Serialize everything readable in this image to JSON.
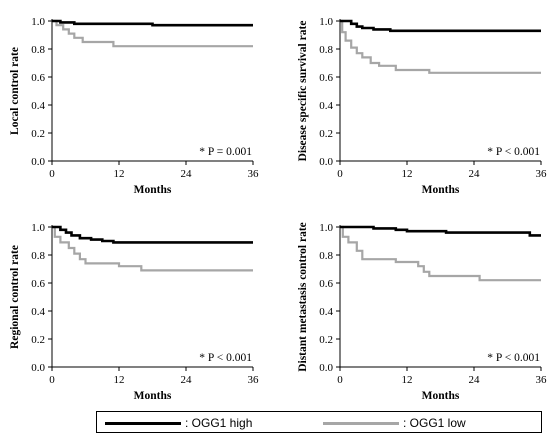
{
  "colors": {
    "high": "#000000",
    "low": "#a6a6a6",
    "axis": "#000000"
  },
  "legend": {
    "high_label": ": OGG1 high",
    "low_label": ": OGG1 low"
  },
  "chart_data": [
    {
      "type": "line",
      "ylabel": "Local control rate",
      "xlabel": "Months",
      "pvalue": "* P = 0.001",
      "xlim": [
        0,
        36
      ],
      "ylim": [
        0,
        1.0
      ],
      "xticks": [
        0,
        12,
        24,
        36
      ],
      "yticks": [
        0.0,
        0.2,
        0.4,
        0.6,
        0.8,
        1.0
      ],
      "series": [
        {
          "name": "OGG1 high",
          "color": "#000000",
          "points": [
            [
              0,
              1.0
            ],
            [
              1.5,
              1.0
            ],
            [
              1.5,
              0.99
            ],
            [
              4,
              0.99
            ],
            [
              4,
              0.98
            ],
            [
              18,
              0.98
            ],
            [
              18,
              0.97
            ],
            [
              36,
              0.97
            ]
          ]
        },
        {
          "name": "OGG1 low",
          "color": "#a6a6a6",
          "points": [
            [
              0,
              1.0
            ],
            [
              0.8,
              1.0
            ],
            [
              0.8,
              0.97
            ],
            [
              2,
              0.97
            ],
            [
              2,
              0.94
            ],
            [
              3,
              0.94
            ],
            [
              3,
              0.91
            ],
            [
              4,
              0.91
            ],
            [
              4,
              0.88
            ],
            [
              5.5,
              0.88
            ],
            [
              5.5,
              0.85
            ],
            [
              11,
              0.85
            ],
            [
              11,
              0.82
            ],
            [
              36,
              0.82
            ]
          ]
        }
      ]
    },
    {
      "type": "line",
      "ylabel": "Disease specific survival rate",
      "xlabel": "Months",
      "pvalue": "* P < 0.001",
      "xlim": [
        0,
        36
      ],
      "ylim": [
        0,
        1.0
      ],
      "xticks": [
        0,
        12,
        24,
        36
      ],
      "yticks": [
        0.0,
        0.2,
        0.4,
        0.6,
        0.8,
        1.0
      ],
      "series": [
        {
          "name": "OGG1 high",
          "color": "#000000",
          "points": [
            [
              0,
              1.0
            ],
            [
              2,
              1.0
            ],
            [
              2,
              0.98
            ],
            [
              3,
              0.98
            ],
            [
              3,
              0.96
            ],
            [
              4,
              0.96
            ],
            [
              4,
              0.95
            ],
            [
              6,
              0.95
            ],
            [
              6,
              0.94
            ],
            [
              9,
              0.94
            ],
            [
              9,
              0.93
            ],
            [
              36,
              0.93
            ]
          ]
        },
        {
          "name": "OGG1 low",
          "color": "#a6a6a6",
          "points": [
            [
              0,
              1.0
            ],
            [
              0.4,
              1.0
            ],
            [
              0.4,
              0.92
            ],
            [
              1,
              0.92
            ],
            [
              1,
              0.86
            ],
            [
              2,
              0.86
            ],
            [
              2,
              0.81
            ],
            [
              3,
              0.81
            ],
            [
              3,
              0.77
            ],
            [
              4,
              0.77
            ],
            [
              4,
              0.74
            ],
            [
              5.5,
              0.74
            ],
            [
              5.5,
              0.7
            ],
            [
              7,
              0.7
            ],
            [
              7,
              0.68
            ],
            [
              10,
              0.68
            ],
            [
              10,
              0.65
            ],
            [
              16,
              0.65
            ],
            [
              16,
              0.63
            ],
            [
              36,
              0.63
            ]
          ]
        }
      ]
    },
    {
      "type": "line",
      "ylabel": "Regional control rate",
      "xlabel": "Months",
      "pvalue": "* P < 0.001",
      "xlim": [
        0,
        36
      ],
      "ylim": [
        0,
        1.0
      ],
      "xticks": [
        0,
        12,
        24,
        36
      ],
      "yticks": [
        0.0,
        0.2,
        0.4,
        0.6,
        0.8,
        1.0
      ],
      "series": [
        {
          "name": "OGG1 high",
          "color": "#000000",
          "points": [
            [
              0,
              1.0
            ],
            [
              1.5,
              1.0
            ],
            [
              1.5,
              0.98
            ],
            [
              2.5,
              0.98
            ],
            [
              2.5,
              0.96
            ],
            [
              3.5,
              0.96
            ],
            [
              3.5,
              0.94
            ],
            [
              5,
              0.94
            ],
            [
              5,
              0.92
            ],
            [
              7,
              0.92
            ],
            [
              7,
              0.91
            ],
            [
              9,
              0.91
            ],
            [
              9,
              0.9
            ],
            [
              11,
              0.9
            ],
            [
              11,
              0.89
            ],
            [
              36,
              0.89
            ]
          ]
        },
        {
          "name": "OGG1 low",
          "color": "#a6a6a6",
          "points": [
            [
              0,
              1.0
            ],
            [
              0.5,
              1.0
            ],
            [
              0.5,
              0.93
            ],
            [
              1.5,
              0.93
            ],
            [
              1.5,
              0.89
            ],
            [
              3,
              0.89
            ],
            [
              3,
              0.85
            ],
            [
              4,
              0.85
            ],
            [
              4,
              0.81
            ],
            [
              5,
              0.81
            ],
            [
              5,
              0.77
            ],
            [
              6,
              0.77
            ],
            [
              6,
              0.74
            ],
            [
              12,
              0.74
            ],
            [
              12,
              0.72
            ],
            [
              16,
              0.72
            ],
            [
              16,
              0.69
            ],
            [
              36,
              0.69
            ]
          ]
        }
      ]
    },
    {
      "type": "line",
      "ylabel": "Distant metastasis control rate",
      "xlabel": "Months",
      "pvalue": "* P < 0.001",
      "xlim": [
        0,
        36
      ],
      "ylim": [
        0,
        1.0
      ],
      "xticks": [
        0,
        12,
        24,
        36
      ],
      "yticks": [
        0.0,
        0.2,
        0.4,
        0.6,
        0.8,
        1.0
      ],
      "series": [
        {
          "name": "OGG1 high",
          "color": "#000000",
          "points": [
            [
              0,
              1.0
            ],
            [
              6,
              1.0
            ],
            [
              6,
              0.99
            ],
            [
              10,
              0.99
            ],
            [
              10,
              0.98
            ],
            [
              12,
              0.98
            ],
            [
              12,
              0.97
            ],
            [
              19,
              0.97
            ],
            [
              19,
              0.96
            ],
            [
              34,
              0.96
            ],
            [
              34,
              0.94
            ],
            [
              36,
              0.94
            ]
          ]
        },
        {
          "name": "OGG1 low",
          "color": "#a6a6a6",
          "points": [
            [
              0,
              1.0
            ],
            [
              0.5,
              1.0
            ],
            [
              0.5,
              0.93
            ],
            [
              1.5,
              0.93
            ],
            [
              1.5,
              0.89
            ],
            [
              3,
              0.89
            ],
            [
              3,
              0.83
            ],
            [
              4,
              0.83
            ],
            [
              4,
              0.77
            ],
            [
              10,
              0.77
            ],
            [
              10,
              0.75
            ],
            [
              14,
              0.75
            ],
            [
              14,
              0.72
            ],
            [
              15,
              0.72
            ],
            [
              15,
              0.68
            ],
            [
              16,
              0.68
            ],
            [
              16,
              0.65
            ],
            [
              25,
              0.65
            ],
            [
              25,
              0.62
            ],
            [
              36,
              0.62
            ]
          ]
        }
      ]
    }
  ]
}
